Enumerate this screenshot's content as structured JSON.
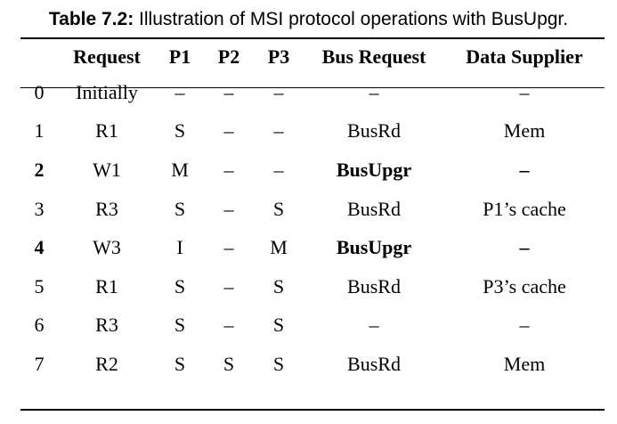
{
  "caption": {
    "label": "Table 7.2:",
    "text": "Illustration of MSI protocol operations with BusUpgr."
  },
  "columns": [
    "",
    "Request",
    "P1",
    "P2",
    "P3",
    "Bus Request",
    "Data Supplier"
  ],
  "rows": [
    {
      "idx": "0",
      "request": "Initially",
      "p1": "–",
      "p2": "–",
      "p3": "–",
      "bus": "–",
      "supplier": "–",
      "bold": false
    },
    {
      "idx": "1",
      "request": "R1",
      "p1": "S",
      "p2": "–",
      "p3": "–",
      "bus": "BusRd",
      "supplier": "Mem",
      "bold": false
    },
    {
      "idx": "2",
      "request": "W1",
      "p1": "M",
      "p2": "–",
      "p3": "–",
      "bus": "BusUpgr",
      "supplier": "–",
      "bold": true
    },
    {
      "idx": "3",
      "request": "R3",
      "p1": "S",
      "p2": "–",
      "p3": "S",
      "bus": "BusRd",
      "supplier": "P1’s cache",
      "bold": false
    },
    {
      "idx": "4",
      "request": "W3",
      "p1": "I",
      "p2": "–",
      "p3": "M",
      "bus": "BusUpgr",
      "supplier": "–",
      "bold": true
    },
    {
      "idx": "5",
      "request": "R1",
      "p1": "S",
      "p2": "–",
      "p3": "S",
      "bus": "BusRd",
      "supplier": "P3’s cache",
      "bold": false
    },
    {
      "idx": "6",
      "request": "R3",
      "p1": "S",
      "p2": "–",
      "p3": "S",
      "bus": "–",
      "supplier": "–",
      "bold": false
    },
    {
      "idx": "7",
      "request": "R2",
      "p1": "S",
      "p2": "S",
      "p3": "S",
      "bus": "BusRd",
      "supplier": "Mem",
      "bold": false
    }
  ]
}
